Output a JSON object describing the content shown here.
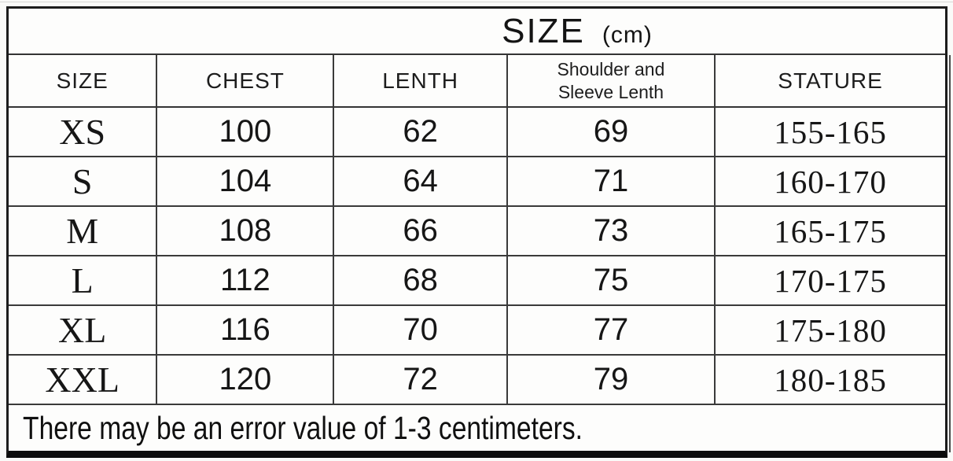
{
  "chart_data": {
    "type": "table",
    "title": "SIZE",
    "title_unit": "(cm)",
    "columns": [
      "SIZE",
      "CHEST",
      "LENTH",
      "Shoulder and Sleeve Lenth",
      "STATURE"
    ],
    "column_header_lines": {
      "shoulder_line1": "Shoulder and",
      "shoulder_line2": "Sleeve Lenth"
    },
    "rows": [
      {
        "size": "XS",
        "chest": "100",
        "length": "62",
        "shoulder_sleeve": "69",
        "stature": "155-165"
      },
      {
        "size": "S",
        "chest": "104",
        "length": "64",
        "shoulder_sleeve": "71",
        "stature": "160-170"
      },
      {
        "size": "M",
        "chest": "108",
        "length": "66",
        "shoulder_sleeve": "73",
        "stature": "165-175"
      },
      {
        "size": "L",
        "chest": "112",
        "length": "68",
        "shoulder_sleeve": "75",
        "stature": "170-175"
      },
      {
        "size": "XL",
        "chest": "116",
        "length": "70",
        "shoulder_sleeve": "77",
        "stature": "175-180"
      },
      {
        "size": "XXL",
        "chest": "120",
        "length": "72",
        "shoulder_sleeve": "79",
        "stature": "180-185"
      }
    ],
    "footnote": "There may be an error value of 1-3 centimeters.",
    "layout_hints": {
      "unit": "cm",
      "grid": "on",
      "title_position": "top-center-right"
    }
  },
  "colors": {
    "background": "#fdfdfc",
    "grid_line": "#3a3a3a",
    "outer_border": "#1c1c1c",
    "bottom_bar": "#0c0c0c",
    "text": "#161616"
  }
}
